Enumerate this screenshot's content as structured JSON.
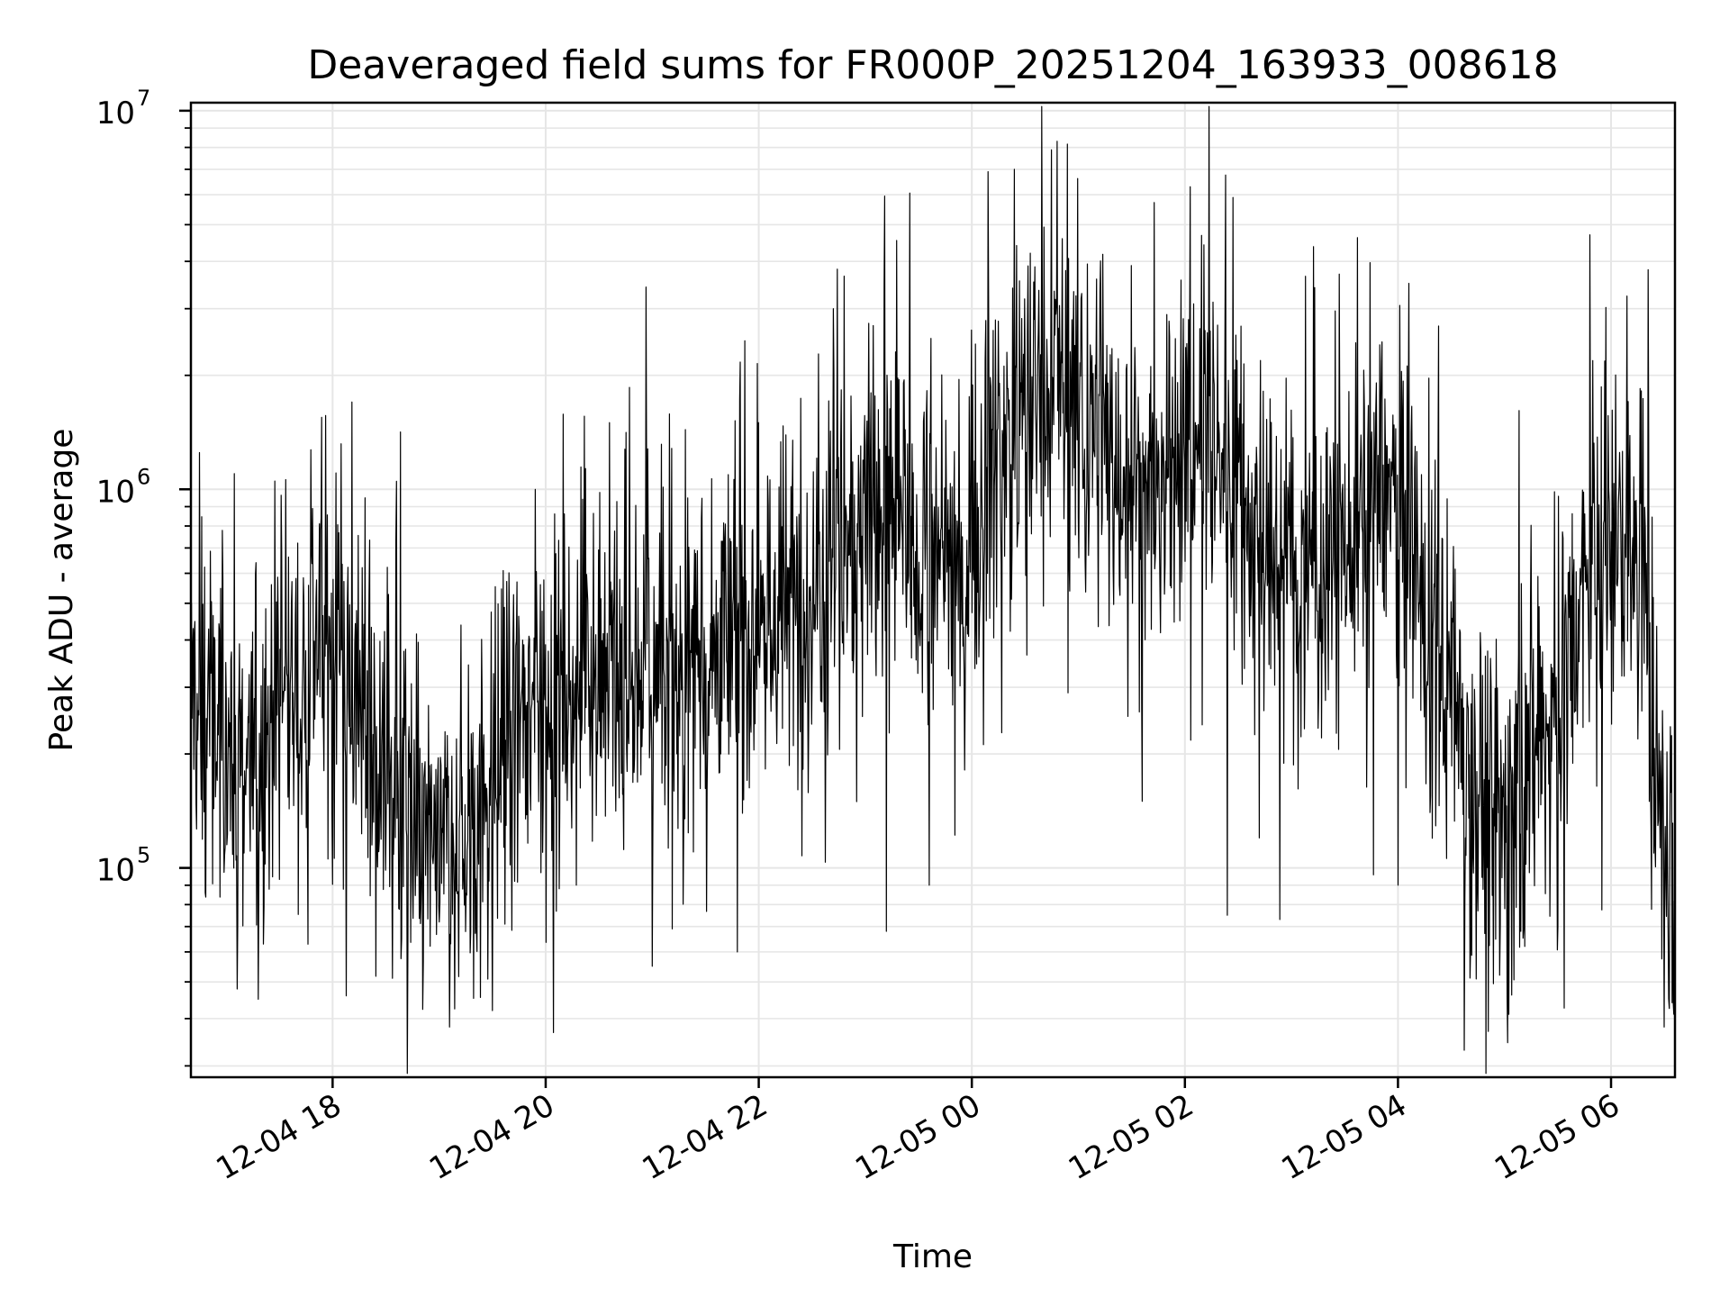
{
  "chart_data": {
    "type": "line",
    "title": "Deaveraged field sums for FR000P_20251204_163933_008618",
    "xlabel": "Time",
    "ylabel": "Peak ADU - average",
    "y_scale": "log",
    "ylim": [
      28000,
      10500000
    ],
    "xlim_hours": [
      16.67,
      30.6
    ],
    "x_ticks": [
      {
        "hour": 18,
        "label": "12-04 18"
      },
      {
        "hour": 20,
        "label": "12-04 20"
      },
      {
        "hour": 22,
        "label": "12-04 22"
      },
      {
        "hour": 24,
        "label": "12-05 00"
      },
      {
        "hour": 26,
        "label": "12-05 02"
      },
      {
        "hour": 28,
        "label": "12-05 04"
      },
      {
        "hour": 30,
        "label": "12-05 06"
      }
    ],
    "y_ticks": [
      {
        "value": 100000,
        "base": "10",
        "exp": "5"
      },
      {
        "value": 1000000,
        "base": "10",
        "exp": "6"
      },
      {
        "value": 10000000,
        "base": "10",
        "exp": "7"
      }
    ],
    "grid": true,
    "line_color": "#000000",
    "grid_color": "#e6e6e6",
    "series": [
      {
        "name": "Peak ADU - average",
        "trend": [
          [
            16.67,
            300000
          ],
          [
            17.0,
            200000
          ],
          [
            17.3,
            180000
          ],
          [
            17.6,
            300000
          ],
          [
            17.9,
            420000
          ],
          [
            18.2,
            320000
          ],
          [
            18.5,
            150000
          ],
          [
            18.8,
            120000
          ],
          [
            19.1,
            110000
          ],
          [
            19.4,
            150000
          ],
          [
            19.7,
            230000
          ],
          [
            20.0,
            260000
          ],
          [
            20.3,
            300000
          ],
          [
            20.6,
            320000
          ],
          [
            20.9,
            310000
          ],
          [
            21.2,
            330000
          ],
          [
            21.5,
            360000
          ],
          [
            21.8,
            400000
          ],
          [
            22.1,
            450000
          ],
          [
            22.4,
            500000
          ],
          [
            22.7,
            700000
          ],
          [
            23.0,
            900000
          ],
          [
            23.3,
            850000
          ],
          [
            23.6,
            600000
          ],
          [
            23.9,
            650000
          ],
          [
            24.2,
            1200000
          ],
          [
            24.5,
            1600000
          ],
          [
            24.8,
            2000000
          ],
          [
            25.1,
            1500000
          ],
          [
            25.4,
            1100000
          ],
          [
            25.7,
            900000
          ],
          [
            26.0,
            1200000
          ],
          [
            26.2,
            1500000
          ],
          [
            26.5,
            900000
          ],
          [
            26.8,
            650000
          ],
          [
            27.1,
            600000
          ],
          [
            27.4,
            650000
          ],
          [
            27.7,
            850000
          ],
          [
            28.0,
            1000000
          ],
          [
            28.2,
            500000
          ],
          [
            28.5,
            300000
          ],
          [
            28.7,
            180000
          ],
          [
            28.9,
            130000
          ],
          [
            29.2,
            200000
          ],
          [
            29.5,
            250000
          ],
          [
            29.8,
            600000
          ],
          [
            30.1,
            700000
          ],
          [
            30.3,
            600000
          ],
          [
            30.45,
            150000
          ],
          [
            30.6,
            80000
          ]
        ],
        "peaks": [
          [
            16.75,
            1250000
          ],
          [
            17.08,
            1100000
          ],
          [
            17.9,
            1550000
          ],
          [
            18.18,
            1700000
          ],
          [
            18.6,
            1050000
          ],
          [
            19.9,
            1000000
          ],
          [
            20.6,
            1500000
          ],
          [
            22.0,
            1500000
          ],
          [
            22.7,
            3000000
          ],
          [
            23.55,
            1600000
          ],
          [
            24.15,
            6900000
          ],
          [
            24.4,
            7000000
          ],
          [
            24.8,
            8300000
          ],
          [
            25.5,
            3900000
          ],
          [
            26.05,
            6300000
          ],
          [
            26.45,
            5900000
          ],
          [
            27.45,
            3700000
          ],
          [
            28.1,
            3500000
          ],
          [
            29.8,
            4700000
          ],
          [
            30.35,
            3800000
          ]
        ],
        "troughs": [
          [
            17.3,
            45000
          ],
          [
            18.65,
            65000
          ],
          [
            19.1,
            38000
          ],
          [
            19.5,
            42000
          ],
          [
            21.0,
            55000
          ],
          [
            21.8,
            60000
          ],
          [
            23.2,
            68000
          ],
          [
            23.6,
            90000
          ],
          [
            24.9,
            290000
          ],
          [
            25.6,
            150000
          ],
          [
            26.4,
            75000
          ],
          [
            26.7,
            120000
          ],
          [
            28.0,
            90000
          ],
          [
            28.62,
            33000
          ],
          [
            28.85,
            37000
          ],
          [
            29.5,
            70000
          ],
          [
            30.5,
            38000
          ]
        ]
      }
    ]
  }
}
